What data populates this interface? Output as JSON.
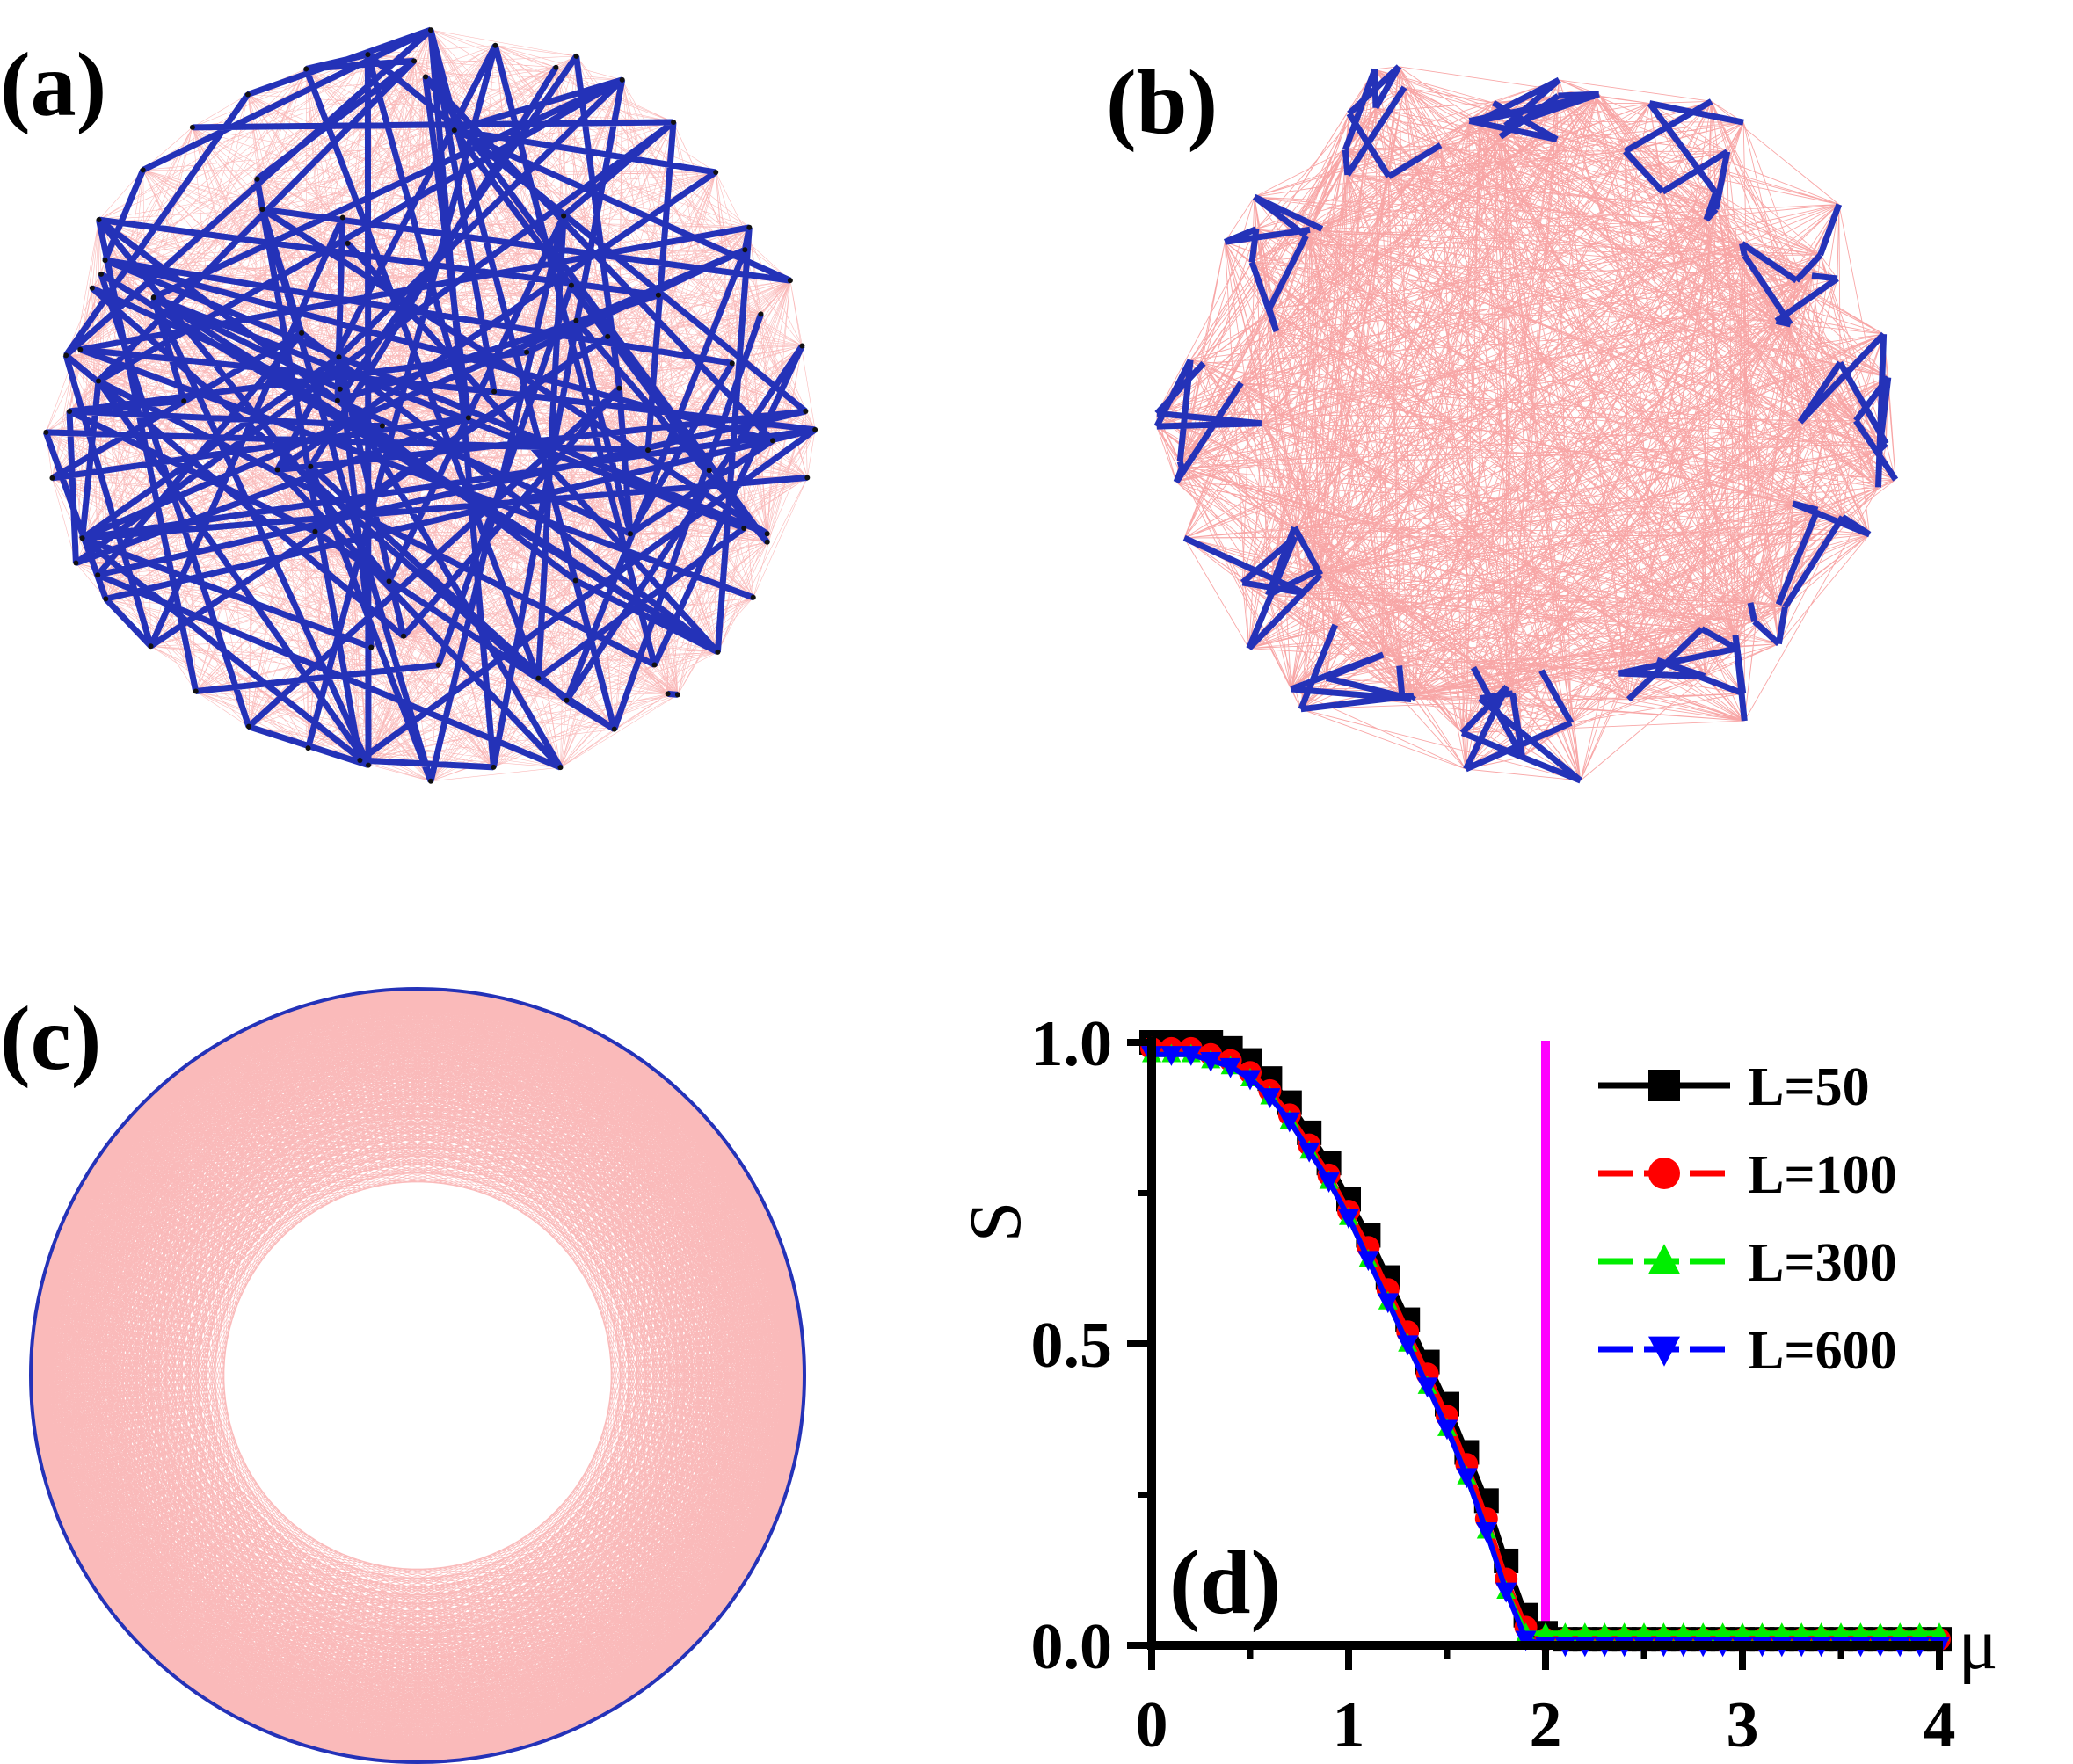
{
  "panels": {
    "a": {
      "label": "(a)"
    },
    "b": {
      "label": "(b)"
    },
    "c": {
      "label": "(c)"
    },
    "d": {
      "label": "(d)"
    }
  },
  "colors": {
    "network_bond": "#2432b8",
    "network_link": "#f03a3a",
    "node": "#111111",
    "vline": "#ff00ff",
    "series": [
      "#000000",
      "#ff0000",
      "#00ee00",
      "#0000ff"
    ]
  },
  "chart_data": {
    "type": "line",
    "title": "",
    "xlabel": "μ",
    "ylabel": "S",
    "xlim": [
      0,
      4
    ],
    "ylim": [
      0,
      1
    ],
    "xticks": [
      "0",
      "1",
      "2",
      "3",
      "4"
    ],
    "yticks": [
      "0.0",
      "0.5",
      "1.0"
    ],
    "x": [
      0.0,
      0.1,
      0.2,
      0.3,
      0.4,
      0.5,
      0.6,
      0.7,
      0.8,
      0.9,
      1.0,
      1.1,
      1.2,
      1.3,
      1.4,
      1.5,
      1.6,
      1.7,
      1.8,
      1.9,
      2.0,
      2.1,
      2.2,
      2.3,
      2.4,
      2.5,
      2.6,
      2.7,
      2.8,
      2.9,
      3.0,
      3.1,
      3.2,
      3.3,
      3.4,
      3.5,
      3.6,
      3.7,
      3.8,
      3.9,
      4.0
    ],
    "series": [
      {
        "name": "L=50",
        "marker": "square",
        "values": [
          1.0,
          1.0,
          1.0,
          1.0,
          0.99,
          0.97,
          0.94,
          0.9,
          0.85,
          0.8,
          0.74,
          0.68,
          0.61,
          0.54,
          0.47,
          0.4,
          0.32,
          0.24,
          0.14,
          0.05,
          0.02,
          0.01,
          0.01,
          0.01,
          0.01,
          0.01,
          0.01,
          0.01,
          0.01,
          0.01,
          0.01,
          0.01,
          0.01,
          0.01,
          0.01,
          0.01,
          0.01,
          0.01,
          0.01,
          0.01,
          0.01
        ]
      },
      {
        "name": "L=100",
        "marker": "circle",
        "values": [
          0.99,
          0.99,
          0.99,
          0.98,
          0.97,
          0.95,
          0.92,
          0.88,
          0.83,
          0.78,
          0.72,
          0.66,
          0.59,
          0.52,
          0.45,
          0.38,
          0.3,
          0.21,
          0.11,
          0.03,
          0.01,
          0.01,
          0.01,
          0.01,
          0.01,
          0.01,
          0.01,
          0.01,
          0.01,
          0.01,
          0.01,
          0.01,
          0.01,
          0.01,
          0.01,
          0.01,
          0.01,
          0.01,
          0.01,
          0.01,
          0.01
        ]
      },
      {
        "name": "L=300",
        "marker": "triangle-up",
        "values": [
          0.98,
          0.98,
          0.98,
          0.97,
          0.96,
          0.94,
          0.91,
          0.87,
          0.82,
          0.77,
          0.71,
          0.64,
          0.57,
          0.5,
          0.43,
          0.36,
          0.28,
          0.19,
          0.09,
          0.02,
          0.02,
          0.02,
          0.02,
          0.02,
          0.02,
          0.02,
          0.02,
          0.02,
          0.02,
          0.02,
          0.02,
          0.02,
          0.02,
          0.02,
          0.02,
          0.02,
          0.02,
          0.02,
          0.02,
          0.02,
          0.02
        ]
      },
      {
        "name": "L=600",
        "marker": "triangle-down",
        "values": [
          0.98,
          0.98,
          0.98,
          0.97,
          0.96,
          0.94,
          0.91,
          0.87,
          0.82,
          0.77,
          0.71,
          0.64,
          0.57,
          0.5,
          0.43,
          0.36,
          0.28,
          0.19,
          0.09,
          0.01,
          0.0,
          0.0,
          0.0,
          0.0,
          0.0,
          0.0,
          0.0,
          0.0,
          0.0,
          0.0,
          0.0,
          0.0,
          0.0,
          0.0,
          0.0,
          0.0,
          0.0,
          0.0,
          0.0,
          0.0,
          0.0
        ]
      }
    ],
    "vline_x": 2.0,
    "legend_placement": "top-right",
    "grid": false
  }
}
